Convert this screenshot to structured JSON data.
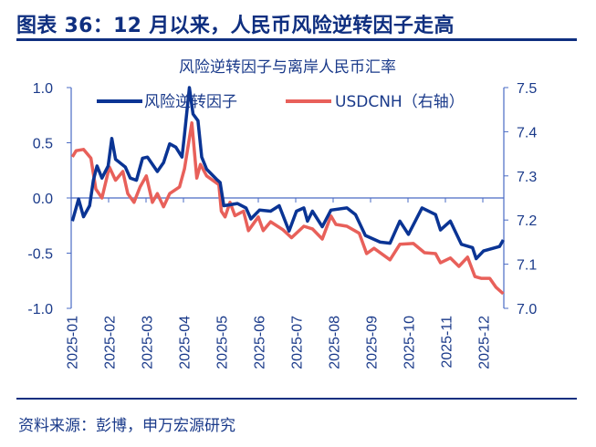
{
  "figure_title": "图表 36：12 月以来，人民币风险逆转因子走高",
  "source": "资料来源：彭博，申万宏源研究",
  "colors": {
    "title": "#0f2f80",
    "risk_reversal": "#0a3494",
    "usdcnh": "#e8605a",
    "axis": "#4a6bc4"
  },
  "chart_data": {
    "type": "line",
    "title": "风险逆转因子与离岸人民币汇率",
    "legend_position": "top",
    "grid": false,
    "x_tick_labels": [
      "2025-01",
      "2025-02",
      "2025-03",
      "2025-04",
      "2025-05",
      "2025-06",
      "2025-07",
      "2025-08",
      "2025-09",
      "2025-10",
      "2025-11",
      "2025-12"
    ],
    "xlim": [
      "2025-01-01",
      "2025-12-18"
    ],
    "y_left": {
      "lim": [
        -1.0,
        1.0
      ],
      "ticks": [
        "1.0",
        "0.5",
        "0.0",
        "-0.5",
        "-1.0"
      ]
    },
    "y_right": {
      "lim": [
        7.0,
        7.5
      ],
      "ticks": [
        "7.5",
        "7.4",
        "7.3",
        "7.2",
        "7.1",
        "7.0"
      ]
    },
    "series": [
      {
        "name": "风险逆转因子",
        "axis": "left",
        "points": [
          [
            "2025-01-02",
            -0.21
          ],
          [
            "2025-01-07",
            -0.01
          ],
          [
            "2025-01-11",
            -0.17
          ],
          [
            "2025-01-16",
            -0.07
          ],
          [
            "2025-01-19",
            0.16
          ],
          [
            "2025-01-22",
            0.29
          ],
          [
            "2025-01-26",
            0.18
          ],
          [
            "2025-01-31",
            0.29
          ],
          [
            "2025-02-03",
            0.54
          ],
          [
            "2025-02-06",
            0.35
          ],
          [
            "2025-02-14",
            0.28
          ],
          [
            "2025-02-18",
            0.18
          ],
          [
            "2025-02-23",
            0.16
          ],
          [
            "2025-02-28",
            0.36
          ],
          [
            "2025-03-04",
            0.37
          ],
          [
            "2025-03-12",
            0.24
          ],
          [
            "2025-03-17",
            0.32
          ],
          [
            "2025-03-22",
            0.49
          ],
          [
            "2025-03-27",
            0.46
          ],
          [
            "2025-04-01",
            0.37
          ],
          [
            "2025-04-03",
            0.57
          ],
          [
            "2025-04-07",
            1.0
          ],
          [
            "2025-04-10",
            0.76
          ],
          [
            "2025-04-14",
            0.7
          ],
          [
            "2025-04-17",
            0.37
          ],
          [
            "2025-04-21",
            0.26
          ],
          [
            "2025-04-29",
            0.17
          ],
          [
            "2025-05-02",
            0.14
          ],
          [
            "2025-05-05",
            -0.07
          ],
          [
            "2025-05-16",
            -0.05
          ],
          [
            "2025-05-23",
            -0.09
          ],
          [
            "2025-05-27",
            -0.19
          ],
          [
            "2025-06-03",
            -0.11
          ],
          [
            "2025-06-12",
            -0.12
          ],
          [
            "2025-06-19",
            -0.07
          ],
          [
            "2025-06-27",
            -0.3
          ],
          [
            "2025-07-03",
            -0.12
          ],
          [
            "2025-07-09",
            -0.09
          ],
          [
            "2025-07-12",
            -0.21
          ],
          [
            "2025-07-16",
            -0.12
          ],
          [
            "2025-07-24",
            -0.26
          ],
          [
            "2025-07-31",
            -0.11
          ],
          [
            "2025-08-13",
            -0.09
          ],
          [
            "2025-08-20",
            -0.15
          ],
          [
            "2025-08-28",
            -0.34
          ],
          [
            "2025-09-09",
            -0.4
          ],
          [
            "2025-09-17",
            -0.41
          ],
          [
            "2025-09-25",
            -0.21
          ],
          [
            "2025-10-02",
            -0.33
          ],
          [
            "2025-10-13",
            -0.09
          ],
          [
            "2025-10-24",
            -0.15
          ],
          [
            "2025-10-28",
            -0.29
          ],
          [
            "2025-11-05",
            -0.21
          ],
          [
            "2025-11-14",
            -0.42
          ],
          [
            "2025-11-23",
            -0.45
          ],
          [
            "2025-11-26",
            -0.55
          ],
          [
            "2025-12-02",
            -0.48
          ],
          [
            "2025-12-15",
            -0.44
          ],
          [
            "2025-12-18",
            -0.38
          ]
        ]
      },
      {
        "name": "USDCNH（右轴）",
        "axis": "right",
        "points": [
          [
            "2025-01-02",
            7.343
          ],
          [
            "2025-01-05",
            7.357
          ],
          [
            "2025-01-11",
            7.36
          ],
          [
            "2025-01-17",
            7.34
          ],
          [
            "2025-01-21",
            7.27
          ],
          [
            "2025-01-26",
            7.25
          ],
          [
            "2025-02-01",
            7.32
          ],
          [
            "2025-02-06",
            7.29
          ],
          [
            "2025-02-12",
            7.31
          ],
          [
            "2025-02-16",
            7.26
          ],
          [
            "2025-02-21",
            7.24
          ],
          [
            "2025-02-26",
            7.275
          ],
          [
            "2025-03-03",
            7.3
          ],
          [
            "2025-03-08",
            7.24
          ],
          [
            "2025-03-12",
            7.26
          ],
          [
            "2025-03-17",
            7.23
          ],
          [
            "2025-03-22",
            7.26
          ],
          [
            "2025-03-30",
            7.275
          ],
          [
            "2025-04-03",
            7.316
          ],
          [
            "2025-04-09",
            7.42
          ],
          [
            "2025-04-13",
            7.295
          ],
          [
            "2025-04-16",
            7.326
          ],
          [
            "2025-04-21",
            7.3
          ],
          [
            "2025-05-01",
            7.28
          ],
          [
            "2025-05-03",
            7.22
          ],
          [
            "2025-05-06",
            7.207
          ],
          [
            "2025-05-10",
            7.24
          ],
          [
            "2025-05-14",
            7.21
          ],
          [
            "2025-05-21",
            7.22
          ],
          [
            "2025-05-25",
            7.176
          ],
          [
            "2025-06-02",
            7.207
          ],
          [
            "2025-06-06",
            7.176
          ],
          [
            "2025-06-12",
            7.196
          ],
          [
            "2025-06-22",
            7.178
          ],
          [
            "2025-06-29",
            7.16
          ],
          [
            "2025-07-09",
            7.186
          ],
          [
            "2025-07-16",
            7.18
          ],
          [
            "2025-07-24",
            7.157
          ],
          [
            "2025-07-31",
            7.209
          ],
          [
            "2025-08-04",
            7.19
          ],
          [
            "2025-08-13",
            7.186
          ],
          [
            "2025-08-23",
            7.17
          ],
          [
            "2025-08-29",
            7.124
          ],
          [
            "2025-09-04",
            7.136
          ],
          [
            "2025-09-17",
            7.11
          ],
          [
            "2025-09-25",
            7.145
          ],
          [
            "2025-10-06",
            7.147
          ],
          [
            "2025-10-15",
            7.126
          ],
          [
            "2025-10-24",
            7.124
          ],
          [
            "2025-10-28",
            7.103
          ],
          [
            "2025-11-05",
            7.114
          ],
          [
            "2025-11-12",
            7.095
          ],
          [
            "2025-11-19",
            7.116
          ],
          [
            "2025-11-25",
            7.072
          ],
          [
            "2025-11-30",
            7.068
          ],
          [
            "2025-12-07",
            7.068
          ],
          [
            "2025-12-12",
            7.048
          ],
          [
            "2025-12-18",
            7.033
          ]
        ]
      }
    ]
  }
}
